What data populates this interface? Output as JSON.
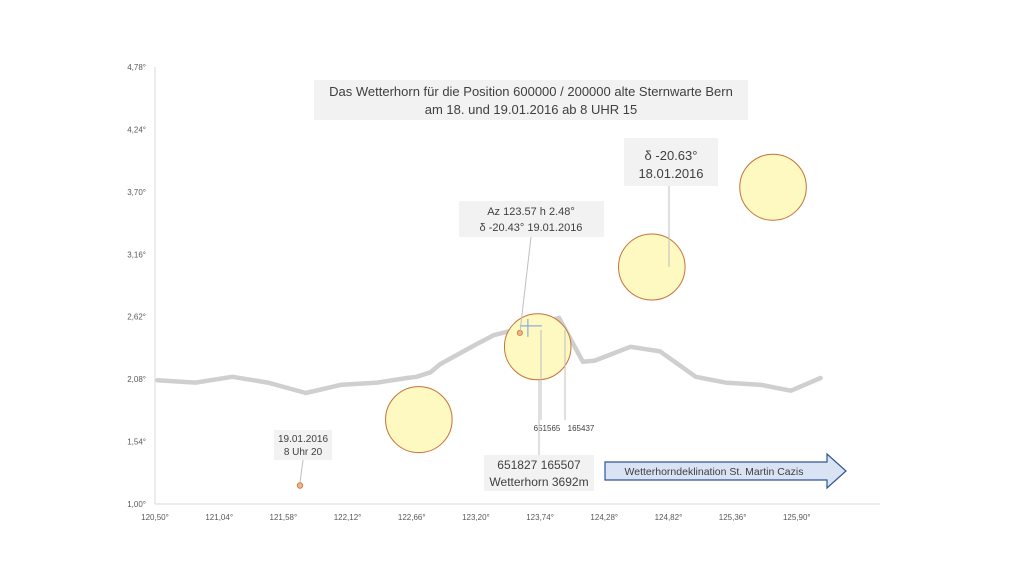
{
  "chart_data": {
    "type": "line",
    "title_lines": [
      "Das Wetterhorn für die Position 600000 / 200000 alte Sternwarte Bern",
      "am 18. und 19.01.2016 ab 8 UHR 15"
    ],
    "xlim": [
      120.5,
      126.6
    ],
    "ylim": [
      1.0,
      4.78
    ],
    "x_ticks": [
      120.5,
      121.04,
      121.58,
      122.12,
      122.66,
      123.2,
      123.74,
      124.28,
      124.82,
      125.36,
      125.9
    ],
    "x_tick_labels": [
      "120,50°",
      "121,04°",
      "121,58°",
      "122,12°",
      "122,66°",
      "123,20°",
      "123,74°",
      "124,28°",
      "124,82°",
      "125,36°",
      "125,90°"
    ],
    "y_ticks": [
      1.0,
      1.54,
      2.08,
      2.62,
      3.16,
      3.7,
      4.24,
      4.78
    ],
    "y_tick_labels": [
      "1,00°",
      "1,54°",
      "2,08°",
      "2,62°",
      "3,16°",
      "3,70°",
      "4,24°",
      "4,78°"
    ],
    "grid": false,
    "horizon_series": {
      "points": [
        [
          120.52,
          2.07
        ],
        [
          120.84,
          2.05
        ],
        [
          121.15,
          2.1
        ],
        [
          121.45,
          2.05
        ],
        [
          121.77,
          1.96
        ],
        [
          122.06,
          2.03
        ],
        [
          122.37,
          2.05
        ],
        [
          122.62,
          2.09
        ],
        [
          122.7,
          2.1
        ],
        [
          122.82,
          2.14
        ],
        [
          122.9,
          2.21
        ],
        [
          123.2,
          2.38
        ],
        [
          123.35,
          2.46
        ],
        [
          123.58,
          2.52
        ],
        [
          123.72,
          2.56
        ],
        [
          123.9,
          2.61
        ],
        [
          124.1,
          2.23
        ],
        [
          124.2,
          2.24
        ],
        [
          124.5,
          2.36
        ],
        [
          124.75,
          2.32
        ],
        [
          125.05,
          2.1
        ],
        [
          125.3,
          2.05
        ],
        [
          125.6,
          2.03
        ],
        [
          125.85,
          1.98
        ],
        [
          126.1,
          2.09
        ]
      ],
      "color": "#cfcfcf"
    },
    "sun_positions": [
      {
        "x": 122.72,
        "y": 1.73,
        "label": ""
      },
      {
        "x": 123.72,
        "y": 2.36,
        "label": ""
      },
      {
        "x": 124.68,
        "y": 3.05,
        "label": ""
      },
      {
        "x": 125.7,
        "y": 3.74,
        "label": ""
      }
    ],
    "sun_fill": "#fdf9c0",
    "sun_stroke": "#c5723a",
    "point_19_01": {
      "x": 121.72,
      "y": 1.16
    },
    "mark_point": {
      "x": 123.57,
      "y": 2.48
    },
    "annotations": {
      "box_az": {
        "line1": "Az 123.57 h 2.48°",
        "line2": "δ -20.43°  19.01.2016"
      },
      "box_delta": {
        "line1": "δ -20.63°",
        "line2": "18.01.2016"
      },
      "box_date": {
        "line1": "19.01.2016",
        "line2": "8 Uhr 20"
      },
      "coord_small_1": "651565",
      "coord_small_2": "165437",
      "box_wetterhorn": {
        "line1": "651827  165507",
        "line2": "Wetterhorn 3692m"
      },
      "arrow_label": "Wetterhorndeklination St. Martin Cazis"
    },
    "colors": {
      "axis": "#d9d9d9",
      "label_box": "#f2f2f2",
      "arrow_fill": "#dae3f3",
      "arrow_stroke": "#2e5597",
      "point": "#f4b183",
      "point_stroke": "#c5723a"
    }
  }
}
